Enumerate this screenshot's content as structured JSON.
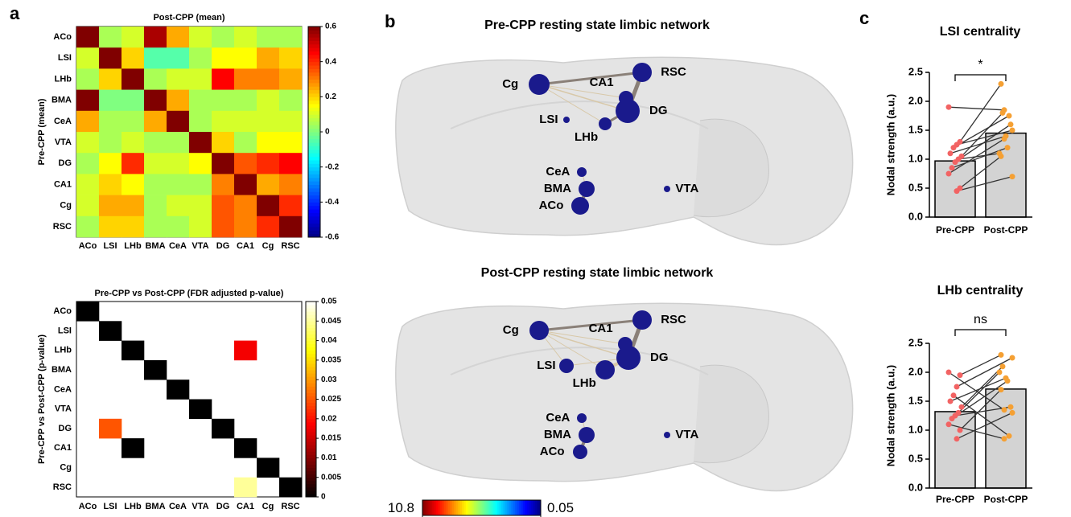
{
  "panel_labels": [
    "a",
    "b",
    "c"
  ],
  "chart_data": [
    {
      "type": "heatmap",
      "title": "Post-CPP (mean)",
      "ylabel": "Pre-CPP (mean)",
      "colormap": "jet",
      "rows": [
        "ACo",
        "LSI",
        "LHb",
        "BMA",
        "CeA",
        "VTA",
        "DG",
        "CA1",
        "Cg",
        "RSC"
      ],
      "columns": [
        "ACo",
        "LSI",
        "LHb",
        "BMA",
        "CeA",
        "VTA",
        "DG",
        "CA1",
        "Cg",
        "RSC"
      ],
      "values": [
        [
          0.6,
          0.05,
          0.1,
          0.55,
          0.25,
          0.1,
          0.05,
          0.1,
          0.05,
          0.05
        ],
        [
          0.1,
          0.6,
          0.2,
          -0.05,
          -0.05,
          0.05,
          0.15,
          0.15,
          0.25,
          0.2
        ],
        [
          0.05,
          0.2,
          0.6,
          0.05,
          0.1,
          0.1,
          0.45,
          0.3,
          0.3,
          0.25
        ],
        [
          0.6,
          0.0,
          0.0,
          0.6,
          0.25,
          0.05,
          0.05,
          0.05,
          0.1,
          0.05
        ],
        [
          0.25,
          0.05,
          0.05,
          0.25,
          0.6,
          0.05,
          0.1,
          0.1,
          0.1,
          0.1
        ],
        [
          0.1,
          0.05,
          0.1,
          0.05,
          0.05,
          0.6,
          0.2,
          0.05,
          0.15,
          0.15
        ],
        [
          0.05,
          0.15,
          0.4,
          0.1,
          0.1,
          0.15,
          0.6,
          0.35,
          0.4,
          0.45
        ],
        [
          0.1,
          0.2,
          0.15,
          0.05,
          0.05,
          0.05,
          0.3,
          0.6,
          0.25,
          0.3
        ],
        [
          0.1,
          0.25,
          0.25,
          0.05,
          0.1,
          0.1,
          0.35,
          0.3,
          0.6,
          0.4
        ],
        [
          0.05,
          0.2,
          0.2,
          0.05,
          0.05,
          0.1,
          0.35,
          0.3,
          0.4,
          0.6
        ]
      ],
      "clim": [
        -0.6,
        0.6
      ],
      "cticks": [
        -0.6,
        -0.4,
        -0.2,
        0,
        0.2,
        0.4,
        0.6
      ]
    },
    {
      "type": "heatmap",
      "title": "Pre-CPP vs Post-CPP (FDR adjusted p-value)",
      "ylabel": "Pre-CPP vs Post-CPP (p-value)",
      "colormap": "hot",
      "rows": [
        "ACo",
        "LSI",
        "LHb",
        "BMA",
        "CeA",
        "VTA",
        "DG",
        "CA1",
        "Cg",
        "RSC"
      ],
      "columns": [
        "ACo",
        "LSI",
        "LHb",
        "BMA",
        "CeA",
        "VTA",
        "DG",
        "CA1",
        "Cg",
        "RSC"
      ],
      "values": [
        [
          0,
          null,
          null,
          null,
          null,
          null,
          null,
          null,
          null,
          null
        ],
        [
          null,
          0,
          null,
          null,
          null,
          null,
          null,
          null,
          null,
          null
        ],
        [
          null,
          null,
          0,
          null,
          null,
          null,
          null,
          0.018,
          null,
          null
        ],
        [
          null,
          null,
          null,
          0,
          null,
          null,
          null,
          null,
          null,
          null
        ],
        [
          null,
          null,
          null,
          null,
          0,
          null,
          null,
          null,
          null,
          null
        ],
        [
          null,
          null,
          null,
          null,
          null,
          0,
          null,
          null,
          null,
          null
        ],
        [
          null,
          0.025,
          null,
          null,
          null,
          null,
          0,
          null,
          null,
          null
        ],
        [
          null,
          null,
          0,
          null,
          null,
          null,
          null,
          0,
          null,
          null
        ],
        [
          null,
          null,
          null,
          null,
          null,
          null,
          null,
          null,
          0,
          null
        ],
        [
          null,
          null,
          null,
          null,
          null,
          null,
          null,
          0.045,
          null,
          0
        ]
      ],
      "clim": [
        0,
        0.05
      ],
      "cticks": [
        0,
        0.005,
        0.01,
        0.015,
        0.02,
        0.025,
        0.03,
        0.035,
        0.04,
        0.045,
        0.05
      ]
    },
    {
      "type": "network",
      "title": "Pre-CPP resting state limbic network",
      "node_color": "#1a1a8c",
      "nodes": [
        "Cg",
        "CA1",
        "RSC",
        "DG",
        "LSI",
        "LHb",
        "CeA",
        "BMA",
        "ACo",
        "VTA"
      ],
      "values": [
        13,
        9,
        12,
        15,
        4,
        8,
        6,
        10,
        11,
        4
      ]
    },
    {
      "type": "network",
      "title": "Post-CPP resting state limbic network",
      "node_color": "#1a1a8c",
      "nodes": [
        "Cg",
        "CA1",
        "RSC",
        "DG",
        "LSI",
        "LHb",
        "CeA",
        "BMA",
        "ACo",
        "VTA"
      ],
      "values": [
        12,
        9,
        12,
        15,
        9,
        12,
        6,
        10,
        9,
        4
      ]
    },
    {
      "type": "colorbar",
      "colormap": "jet_r",
      "clim": [
        10.8,
        0.05
      ],
      "ticks": [
        10.8,
        0.05
      ]
    },
    {
      "type": "bar",
      "title": "LSI centrality",
      "ylabel": "Nodal strength (a.u.)",
      "annotation": "*",
      "categories": [
        "Pre-CPP",
        "Post-CPP"
      ],
      "values": [
        0.97,
        1.45
      ],
      "color": "#d3d3d3",
      "point_colors": [
        "#f26363",
        "#f5a033"
      ],
      "points": [
        [
          1.9,
          1.3,
          1.25,
          1.2,
          1.1,
          1.05,
          1.0,
          0.95,
          0.85,
          0.75,
          0.5,
          0.45
        ],
        [
          1.85,
          2.3,
          1.5,
          1.75,
          1.4,
          1.8,
          1.1,
          1.6,
          1.2,
          1.35,
          1.05,
          0.7
        ]
      ],
      "ylim": [
        0,
        2.5
      ],
      "yticks": [
        {
          "value": 0,
          "label": "0.0"
        },
        0.5,
        {
          "value": 1,
          "label": "1.0"
        },
        1.5,
        {
          "value": 2,
          "label": "2.0"
        },
        2.5
      ]
    },
    {
      "type": "bar",
      "title": "LHb centrality",
      "ylabel": "Nodal strength (a.u.)",
      "annotation": "ns",
      "categories": [
        "Pre-CPP",
        "Post-CPP"
      ],
      "values": [
        1.32,
        1.71
      ],
      "color": "#d3d3d3",
      "point_colors": [
        "#f26363",
        "#f5a033"
      ],
      "points": [
        [
          2.0,
          1.95,
          1.75,
          1.6,
          1.5,
          1.4,
          1.3,
          1.25,
          1.2,
          1.1,
          1.0,
          0.85
        ],
        [
          1.35,
          2.3,
          2.25,
          0.9,
          1.9,
          2.1,
          2.0,
          1.4,
          1.85,
          0.85,
          1.7,
          1.3
        ]
      ],
      "ylim": [
        0,
        2.5
      ],
      "yticks": [
        {
          "value": 0,
          "label": "0.0"
        },
        0.5,
        {
          "value": 1,
          "label": "1.0"
        },
        1.5,
        {
          "value": 2,
          "label": "2.0"
        },
        2.5
      ]
    }
  ]
}
